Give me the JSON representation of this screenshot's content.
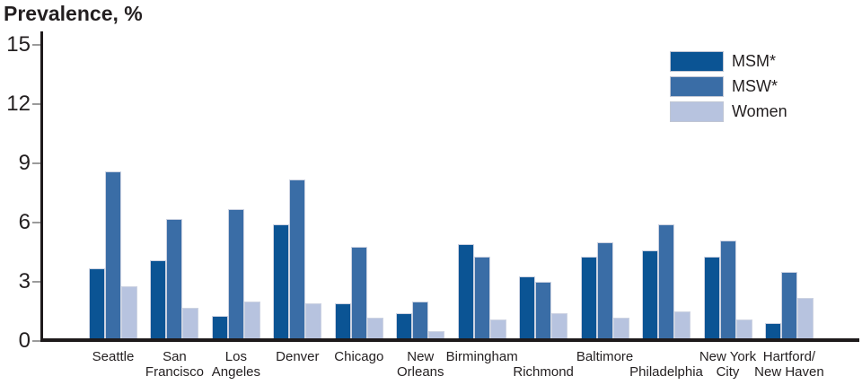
{
  "title": "Prevalence, %",
  "legend": {
    "items": [
      {
        "label": "MSM*",
        "color": "#0b5494"
      },
      {
        "label": "MSW*",
        "color": "#3a6da6"
      },
      {
        "label": "Women",
        "color": "#b7c3df"
      }
    ]
  },
  "chart_data": {
    "type": "bar",
    "title": "Prevalence, %",
    "ylabel": "Prevalence, %",
    "ylim": [
      0,
      15
    ],
    "yticks": [
      0,
      3,
      6,
      9,
      12,
      15
    ],
    "grid": false,
    "legend_position": "top-right",
    "categories": [
      "Seattle",
      "San Francisco",
      "Los Angeles",
      "Denver",
      "Chicago",
      "New Orleans",
      "Birmingham",
      "Richmond",
      "Baltimore",
      "Philadelphia",
      "New York City",
      "Hartford/New Haven"
    ],
    "category_label_lines": [
      [
        "Seattle"
      ],
      [
        "San",
        "Francisco"
      ],
      [
        "Los",
        "Angeles"
      ],
      [
        "Denver"
      ],
      [
        "Chicago"
      ],
      [
        "New",
        "Orleans"
      ],
      [
        "Birmingham"
      ],
      [
        "Richmond"
      ],
      [
        "Baltimore"
      ],
      [
        "Philadelphia"
      ],
      [
        "New York",
        "City"
      ],
      [
        "Hartford/",
        "New Haven"
      ]
    ],
    "category_label_row": [
      "top",
      "top",
      "top",
      "top",
      "top",
      "top",
      "top",
      "bottom",
      "top",
      "bottom",
      "top",
      "top"
    ],
    "series": [
      {
        "name": "MSM*",
        "color": "#0b5494",
        "values": [
          3.6,
          4.0,
          1.2,
          5.8,
          1.8,
          1.3,
          4.8,
          3.2,
          4.2,
          4.5,
          4.2,
          0.8
        ]
      },
      {
        "name": "MSW*",
        "color": "#3a6da6",
        "values": [
          8.5,
          6.1,
          6.6,
          8.1,
          4.7,
          1.9,
          4.2,
          2.9,
          4.9,
          5.8,
          5.0,
          3.4
        ]
      },
      {
        "name": "Women",
        "color": "#b7c3df",
        "values": [
          2.7,
          1.6,
          1.9,
          1.8,
          1.1,
          0.4,
          1.0,
          1.3,
          1.1,
          1.4,
          1.0,
          2.1
        ]
      }
    ],
    "bar_border_color": "#cdd3e2",
    "axis_color": "#1e1a1b",
    "tick_color": "#9b9b9b",
    "text_color": "#231f20"
  }
}
